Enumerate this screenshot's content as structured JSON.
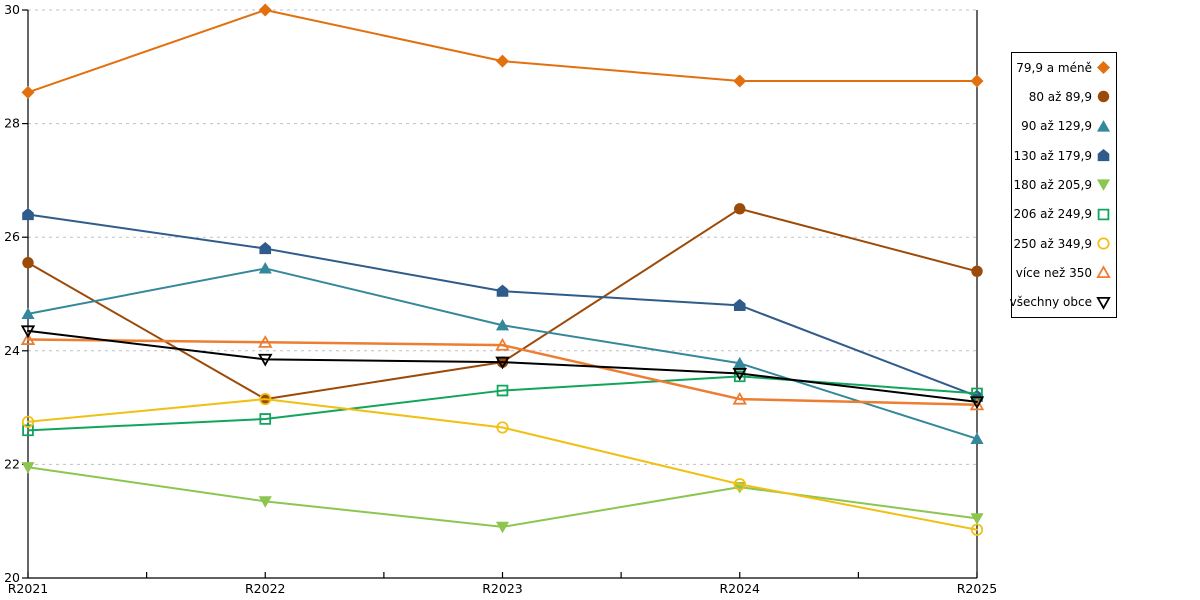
{
  "chart_data": {
    "type": "line",
    "title": "",
    "xlabel": "",
    "ylabel": "",
    "categories": [
      "R2021",
      "R2022",
      "R2023",
      "R2024",
      "R2025"
    ],
    "ylim": [
      20,
      30
    ],
    "yticks": [
      20,
      22,
      24,
      26,
      28,
      30
    ],
    "grid": "horizontal-dashed",
    "legend_position": "right",
    "series": [
      {
        "name": "79,9 a méně",
        "marker": "diamond",
        "style": "filled",
        "color": "#E2700F",
        "line_width": 2,
        "values": [
          28.55,
          30.0,
          29.1,
          28.75,
          28.75
        ]
      },
      {
        "name": "80 až 89,9",
        "marker": "circle",
        "style": "filled",
        "color": "#9C4A08",
        "line_width": 2,
        "values": [
          25.55,
          23.15,
          23.8,
          26.5,
          25.4
        ]
      },
      {
        "name": "90 až 129,9",
        "marker": "triangle-up",
        "style": "filled",
        "color": "#35889B",
        "line_width": 2,
        "values": [
          24.65,
          25.45,
          24.45,
          23.78,
          22.45
        ]
      },
      {
        "name": "130 až 179,9",
        "marker": "pentagon",
        "style": "filled",
        "color": "#2F5C8A",
        "line_width": 2,
        "values": [
          26.4,
          25.8,
          25.05,
          24.8,
          23.2
        ]
      },
      {
        "name": "180 až 205,9",
        "marker": "triangle-down",
        "style": "filled",
        "color": "#8CC550",
        "line_width": 2,
        "values": [
          21.95,
          21.35,
          20.9,
          21.6,
          21.05
        ]
      },
      {
        "name": "206 až 249,9",
        "marker": "square",
        "style": "open",
        "color": "#12A45C",
        "line_width": 2,
        "values": [
          22.6,
          22.8,
          23.3,
          23.55,
          23.25
        ]
      },
      {
        "name": "250 až 349,9",
        "marker": "circle",
        "style": "open",
        "color": "#F0C014",
        "line_width": 2,
        "values": [
          22.75,
          23.15,
          22.65,
          21.65,
          20.85
        ]
      },
      {
        "name": "více než 350",
        "marker": "triangle-up",
        "style": "open",
        "color": "#ED7D31",
        "line_width": 2.5,
        "values": [
          24.2,
          24.15,
          24.1,
          23.15,
          23.05
        ]
      },
      {
        "name": "všechny obce",
        "marker": "triangle-down",
        "style": "open",
        "color": "#000000",
        "line_width": 2,
        "values": [
          24.35,
          23.85,
          23.8,
          23.6,
          23.1
        ]
      }
    ]
  },
  "axes": {
    "x_tick_labels": [
      "R2021",
      "R2022",
      "R2023",
      "R2024",
      "R2025"
    ],
    "y_tick_labels": [
      "20",
      "22",
      "24",
      "26",
      "28",
      "30"
    ]
  },
  "colors": {
    "background": "#FFFFFF",
    "axis": "#000000",
    "gridline": "#C0C0C0",
    "text": "#000000"
  }
}
